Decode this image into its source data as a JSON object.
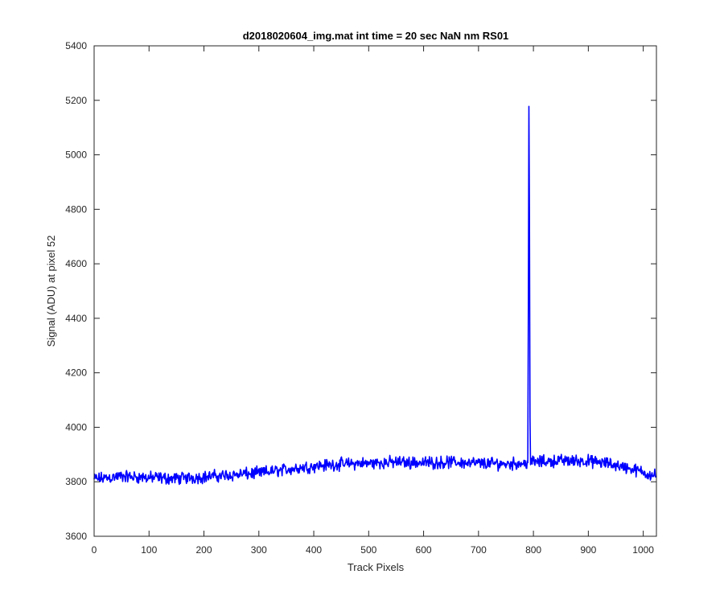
{
  "chart_data": {
    "type": "line",
    "title": "d2018020604_img.mat int time = 20 sec  NaN nm RS01",
    "xlabel": "Track Pixels",
    "ylabel": "Signal (ADU) at pixel 52",
    "xlim": [
      0,
      1024
    ],
    "ylim": [
      3600,
      5400
    ],
    "xticks": [
      0,
      100,
      200,
      300,
      400,
      500,
      600,
      700,
      800,
      900,
      1000
    ],
    "yticks": [
      3600,
      3800,
      4000,
      4200,
      4400,
      4600,
      4800,
      5000,
      5200,
      5400
    ],
    "grid": false,
    "legend": "none",
    "series": [
      {
        "color": "#0000ff",
        "x": [
          0,
          50,
          100,
          150,
          200,
          250,
          300,
          350,
          400,
          450,
          500,
          550,
          600,
          650,
          700,
          750,
          780,
          790,
          792,
          794,
          800,
          850,
          900,
          950,
          1000,
          1024
        ],
        "y": [
          3810,
          3820,
          3815,
          3812,
          3818,
          3825,
          3832,
          3845,
          3858,
          3865,
          3868,
          3872,
          3870,
          3872,
          3868,
          3866,
          3868,
          3870,
          5345,
          3870,
          3872,
          3878,
          3876,
          3862,
          3835,
          3822
        ],
        "noise_amplitude": 20,
        "points": 1024
      }
    ]
  }
}
